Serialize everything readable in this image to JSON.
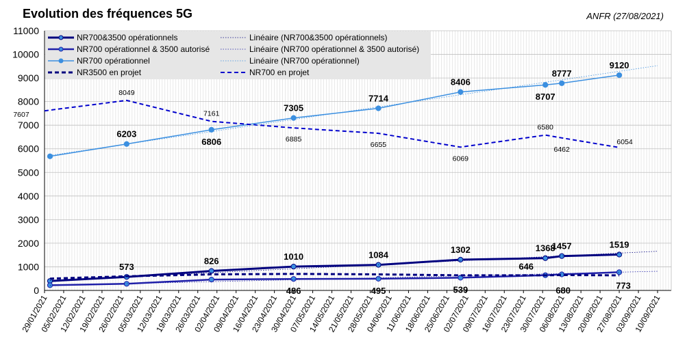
{
  "title": "Evolution des fréquences 5G",
  "source": "ANFR (27/08/2021)",
  "chart_data": {
    "type": "line",
    "title": "Evolution des fréquences 5G",
    "ylim": [
      0,
      11000
    ],
    "y_ticks": [
      0,
      1000,
      2000,
      3000,
      4000,
      5000,
      6000,
      7000,
      8000,
      9000,
      10000,
      11000
    ],
    "x_tick_labels": [
      "29/01/2021",
      "05/02/2021",
      "12/02/2021",
      "19/02/2021",
      "26/02/2021",
      "05/03/2021",
      "12/03/2021",
      "19/03/2021",
      "26/03/2021",
      "02/04/2021",
      "09/04/2021",
      "16/04/2021",
      "23/04/2021",
      "30/04/2021",
      "07/05/2021",
      "14/05/2021",
      "21/05/2021",
      "28/05/2021",
      "04/06/2021",
      "11/06/2021",
      "18/06/2021",
      "25/06/2021",
      "02/07/2021",
      "09/07/2021",
      "16/07/2021",
      "23/07/2021",
      "30/07/2021",
      "06/08/2021",
      "13/08/2021",
      "20/08/2021",
      "27/08/2021",
      "03/09/2021",
      "10/09/2021"
    ],
    "grid": true,
    "legend_position": "top-left",
    "series": [
      {
        "name": "NR700&3500 opérationnels",
        "color": "#00007f",
        "style": "solid",
        "width": 3,
        "x": [
          "31/01/2021",
          "28/02/2021",
          "31/03/2021",
          "30/04/2021",
          "31/05/2021",
          "30/06/2021",
          "31/07/2021",
          "06/08/2021",
          "27/08/2021"
        ],
        "y": [
          400,
          573,
          826,
          1010,
          1084,
          1302,
          1368,
          1457,
          1519
        ],
        "labels": [
          "",
          "573",
          "826",
          "1010",
          "1084",
          "1302",
          "1368",
          "1457",
          "1519"
        ]
      },
      {
        "name": "NR700 opérationnel & 3500 autorisé",
        "color": "#1f1fa8",
        "style": "solid",
        "width": 2.5,
        "x": [
          "31/01/2021",
          "28/02/2021",
          "31/03/2021",
          "30/04/2021",
          "31/05/2021",
          "30/06/2021",
          "31/07/2021",
          "06/08/2021",
          "27/08/2021"
        ],
        "y": [
          220,
          280,
          460,
          486,
          495,
          539,
          646,
          680,
          773
        ],
        "labels": [
          "",
          "",
          "",
          "486",
          "495",
          "539",
          "646",
          "680",
          "773"
        ]
      },
      {
        "name": "NR700 opérationnel",
        "color": "#3b8fe0",
        "style": "solid",
        "width": 1.5,
        "x": [
          "31/01/2021",
          "28/02/2021",
          "31/03/2021",
          "30/04/2021",
          "31/05/2021",
          "30/06/2021",
          "31/07/2021",
          "06/08/2021",
          "27/08/2021"
        ],
        "y": [
          5680,
          6203,
          6806,
          7305,
          7714,
          8406,
          8707,
          8777,
          9120
        ],
        "labels": [
          "",
          "6203",
          "6806",
          "7305",
          "7714",
          "8406",
          "8707",
          "8777",
          "9120"
        ]
      },
      {
        "name": "NR3500 en projet",
        "color": "#00007f",
        "style": "dashed",
        "width": 3,
        "x": [
          "31/01/2021",
          "28/02/2021",
          "31/03/2021",
          "30/04/2021",
          "31/05/2021",
          "30/06/2021",
          "31/07/2021",
          "06/08/2021",
          "27/08/2021"
        ],
        "y": [
          500,
          600,
          680,
          700,
          680,
          640,
          640,
          650,
          640
        ],
        "labels": []
      },
      {
        "name": "NR700 en projet",
        "color": "#0000cc",
        "style": "dashed",
        "width": 2,
        "x": [
          "29/01/2021",
          "28/02/2021",
          "31/03/2021",
          "30/04/2021",
          "31/05/2021",
          "30/06/2021",
          "31/07/2021",
          "06/08/2021",
          "27/08/2021"
        ],
        "y": [
          7607,
          8049,
          7161,
          6885,
          6655,
          6069,
          6580,
          6462,
          6054
        ],
        "labels": [
          "7607",
          "8049",
          "7161",
          "6885",
          "6655",
          "6069",
          "6580",
          "6462",
          "6054"
        ]
      },
      {
        "name": "Linéaire (NR700&3500 opérationnels)",
        "color": "#00007f",
        "style": "dotted",
        "width": 0.8,
        "x": [
          "31/01/2021",
          "10/09/2021"
        ],
        "y": [
          420,
          1660
        ],
        "labels": []
      },
      {
        "name": "Linéaire (NR700 opérationnel & 3500 autorisé)",
        "color": "#1f1fa8",
        "style": "dotted",
        "width": 0.8,
        "x": [
          "31/01/2021",
          "10/09/2021"
        ],
        "y": [
          210,
          810
        ],
        "labels": []
      },
      {
        "name": "Linéaire (NR700 opérationnel)",
        "color": "#3b8fe0",
        "style": "dotted",
        "width": 0.8,
        "x": [
          "31/01/2021",
          "10/09/2021"
        ],
        "y": [
          5720,
          9520
        ],
        "labels": []
      }
    ]
  }
}
